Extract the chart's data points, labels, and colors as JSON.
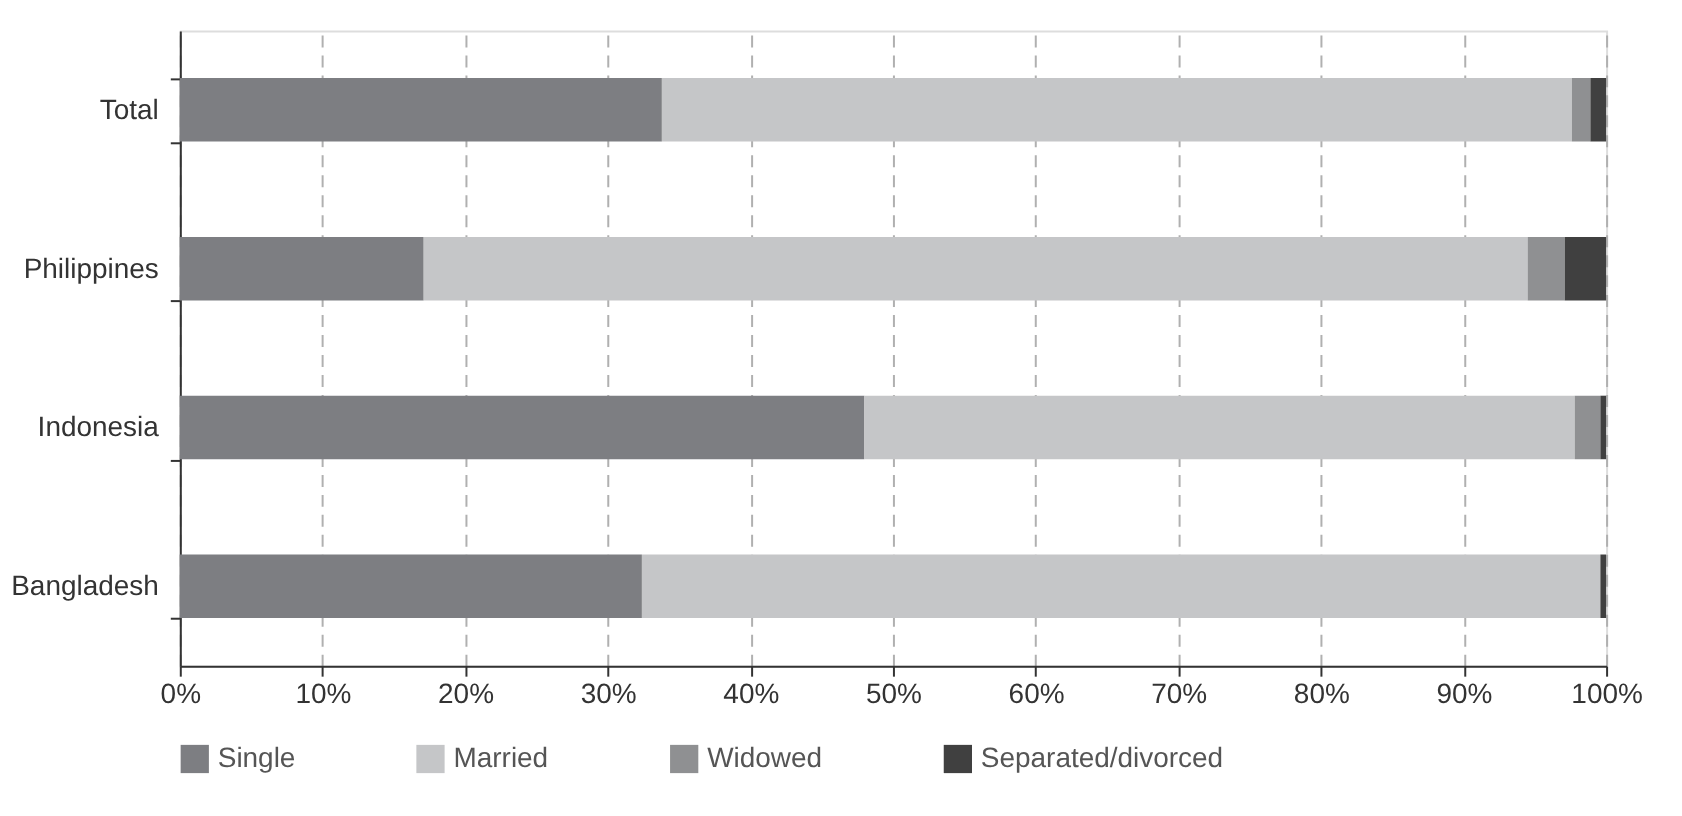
{
  "chart_data": {
    "type": "bar",
    "orientation": "horizontal",
    "stacked": true,
    "categories": [
      "Total",
      "Philippines",
      "Indonesia",
      "Bangladesh"
    ],
    "series": [
      {
        "name": "Single",
        "color": "#7d7e82",
        "values": [
          33.8,
          17.1,
          48.0,
          32.4
        ]
      },
      {
        "name": "Married",
        "color": "#c5c6c8",
        "values": [
          63.8,
          77.4,
          49.8,
          67.2
        ]
      },
      {
        "name": "Widowed",
        "color": "#8f9092",
        "values": [
          1.3,
          2.6,
          1.8,
          0
        ]
      },
      {
        "name": "Separated/divorced",
        "color": "#404040",
        "values": [
          1.1,
          2.9,
          0.4,
          0.4
        ]
      }
    ],
    "xlim": [
      0,
      100
    ],
    "xticks": [
      {
        "value": 0,
        "label": "0%"
      },
      {
        "value": 10,
        "label": "10%"
      },
      {
        "value": 20,
        "label": "20%"
      },
      {
        "value": 30,
        "label": "30%"
      },
      {
        "value": 40,
        "label": "40%"
      },
      {
        "value": 50,
        "label": "50%"
      },
      {
        "value": 60,
        "label": "60%"
      },
      {
        "value": 70,
        "label": "70%"
      },
      {
        "value": 80,
        "label": "80%"
      },
      {
        "value": 90,
        "label": "90%"
      },
      {
        "value": 100,
        "label": "100%"
      }
    ],
    "grid": "x",
    "legend": "bottom"
  }
}
